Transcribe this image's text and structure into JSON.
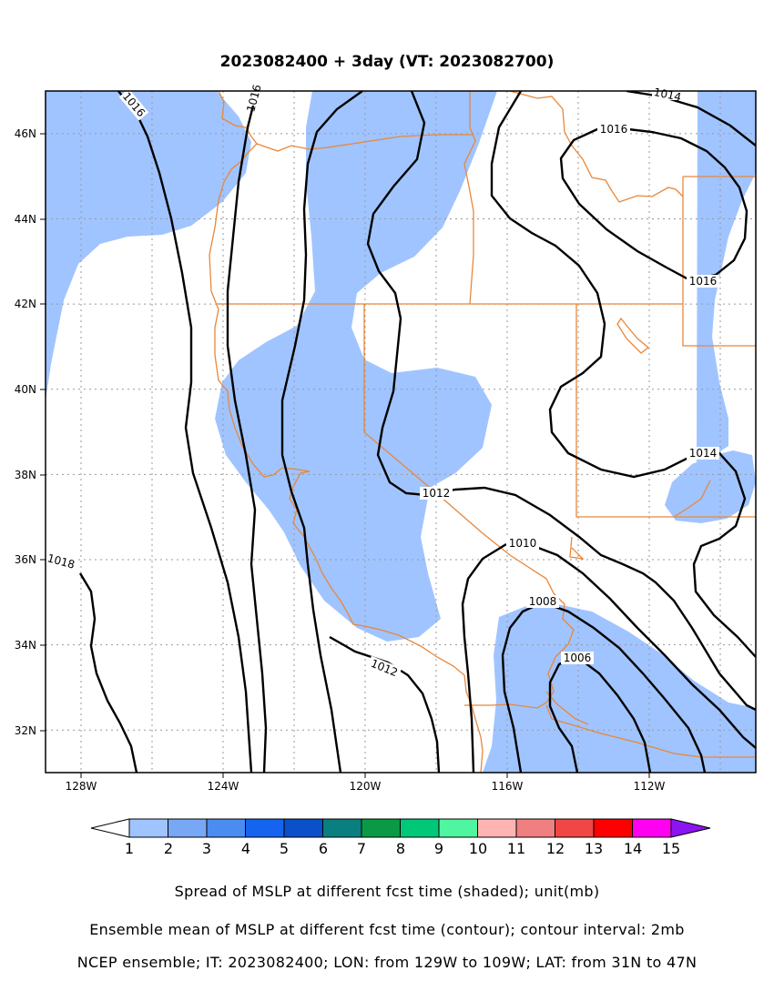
{
  "title": "2023082400 + 3day (VT: 2023082700)",
  "map": {
    "lon_range": [
      -129,
      -109
    ],
    "lat_range": [
      31,
      47
    ],
    "x_ticks": [
      "128W",
      "124W",
      "120W",
      "116W",
      "112W"
    ],
    "y_ticks": [
      "46N",
      "44N",
      "42N",
      "40N",
      "38N",
      "36N",
      "34N",
      "32N"
    ],
    "contour_labels": [
      "1016",
      "1016",
      "1016",
      "1016",
      "1014",
      "1014",
      "1012",
      "1012",
      "1010",
      "1008",
      "1006",
      "1018"
    ],
    "colors": {
      "spread_shade": "#a0c4ff",
      "contour": "#000000",
      "boundaries": "#e8873a",
      "grid": "#999999"
    }
  },
  "colorbar": {
    "labels": [
      "1",
      "2",
      "3",
      "4",
      "5",
      "6",
      "7",
      "8",
      "9",
      "10",
      "11",
      "12",
      "13",
      "14",
      "15"
    ],
    "colors": [
      "#a0c4ff",
      "#78a8f5",
      "#4b8cf0",
      "#1464f0",
      "#0a50c8",
      "#0a7f80",
      "#0a9a46",
      "#00c878",
      "#50f5a0",
      "#ffb4b4",
      "#f08080",
      "#f04646",
      "#ff0000",
      "#ff00f0",
      "#8c14f0"
    ]
  },
  "captions": [
    "Spread of MSLP at different fcst time (shaded); unit(mb)",
    "Ensemble mean of MSLP at different fcst time (contour); contour interval: 2mb",
    "NCEP ensemble; IT: 2023082400; LON: from 129W to 109W; LAT: from 31N to 47N"
  ]
}
